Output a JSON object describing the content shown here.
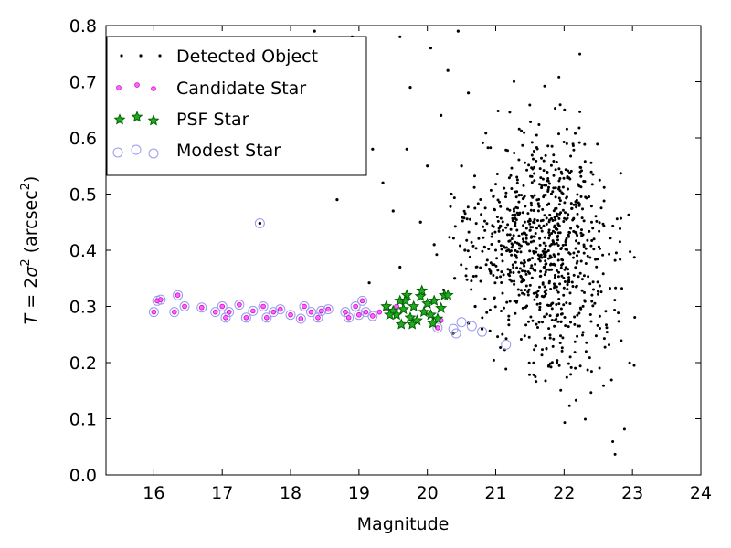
{
  "chart_data": {
    "type": "scatter",
    "xlabel": "Magnitude",
    "ylabel": {
      "prefix": "T",
      "eq": " = 2",
      "sigma": "σ",
      "sup2": "2",
      "unit_open": " (arcsec",
      "unit_sup": "2",
      "unit_close": ")"
    },
    "xlim": [
      15.3,
      24
    ],
    "ylim": [
      0.0,
      0.8
    ],
    "xticks": [
      16,
      17,
      18,
      19,
      20,
      21,
      22,
      23,
      24
    ],
    "yticks": [
      0.0,
      0.1,
      0.2,
      0.3,
      0.4,
      0.5,
      0.6,
      0.7,
      0.8
    ],
    "grid": false,
    "legend_position": "top-left",
    "legend": [
      {
        "label": "Detected Object",
        "marker": "dot",
        "color": "#000000"
      },
      {
        "label": "Candidate Star",
        "marker": "circle-small",
        "color": "#ff00ff"
      },
      {
        "label": "PSF Star",
        "marker": "star",
        "color": "#008000"
      },
      {
        "label": "Modest Star",
        "marker": "circle-large",
        "color": "#9999ee"
      }
    ],
    "series": [
      {
        "name": "Detected Object",
        "description_generator": "dense cloud of faint objects between mag 19.5 and 23.5 spanning T 0.0-0.8, plus the stellar locus near T≈0.29",
        "points": [
          [
            17.55,
            0.448
          ],
          [
            18.7,
            0.565
          ],
          [
            18.68,
            0.49
          ],
          [
            18.9,
            0.78
          ],
          [
            19.2,
            0.58
          ],
          [
            19.15,
            0.342
          ],
          [
            18.35,
            0.79
          ],
          [
            18.5,
            0.62
          ],
          [
            19.6,
            0.78
          ],
          [
            19.75,
            0.69
          ],
          [
            19.5,
            0.47
          ],
          [
            19.35,
            0.52
          ],
          [
            20.05,
            0.76
          ],
          [
            20.3,
            0.72
          ],
          [
            20.2,
            0.64
          ],
          [
            20.45,
            0.79
          ],
          [
            20.5,
            0.55
          ],
          [
            19.9,
            0.45
          ],
          [
            20.0,
            0.55
          ],
          [
            20.6,
            0.68
          ],
          [
            20.1,
            0.41
          ],
          [
            19.6,
            0.37
          ],
          [
            19.7,
            0.58
          ],
          [
            20.35,
            0.5
          ],
          [
            20.4,
            0.35
          ],
          [
            20.55,
            0.4
          ],
          [
            20.7,
            0.3
          ],
          [
            20.8,
            0.26
          ],
          [
            20.6,
            0.27
          ],
          [
            20.38,
            0.252
          ]
        ]
      },
      {
        "name": "Candidate Star",
        "points": [
          [
            16.0,
            0.29
          ],
          [
            16.05,
            0.31
          ],
          [
            16.1,
            0.312
          ],
          [
            16.3,
            0.29
          ],
          [
            16.35,
            0.32
          ],
          [
            16.45,
            0.3
          ],
          [
            16.7,
            0.298
          ],
          [
            16.9,
            0.29
          ],
          [
            17.0,
            0.3
          ],
          [
            17.05,
            0.28
          ],
          [
            17.1,
            0.29
          ],
          [
            17.25,
            0.303
          ],
          [
            17.35,
            0.28
          ],
          [
            17.45,
            0.292
          ],
          [
            17.6,
            0.3
          ],
          [
            17.65,
            0.28
          ],
          [
            17.75,
            0.29
          ],
          [
            17.85,
            0.295
          ],
          [
            18.0,
            0.285
          ],
          [
            18.15,
            0.278
          ],
          [
            18.2,
            0.3
          ],
          [
            18.3,
            0.29
          ],
          [
            18.4,
            0.28
          ],
          [
            18.45,
            0.292
          ],
          [
            18.55,
            0.295
          ],
          [
            18.8,
            0.29
          ],
          [
            18.85,
            0.28
          ],
          [
            18.95,
            0.3
          ],
          [
            19.0,
            0.285
          ],
          [
            19.05,
            0.31
          ],
          [
            19.1,
            0.29
          ],
          [
            19.2,
            0.283
          ],
          [
            19.3,
            0.29
          ],
          [
            19.4,
            0.297
          ],
          [
            19.5,
            0.29
          ],
          [
            19.55,
            0.3
          ],
          [
            20.2,
            0.275
          ],
          [
            20.15,
            0.262
          ]
        ]
      },
      {
        "name": "PSF Star",
        "points": [
          [
            19.4,
            0.3
          ],
          [
            19.5,
            0.292
          ],
          [
            19.55,
            0.285
          ],
          [
            19.6,
            0.31
          ],
          [
            19.65,
            0.295
          ],
          [
            19.7,
            0.32
          ],
          [
            19.75,
            0.28
          ],
          [
            19.8,
            0.3
          ],
          [
            19.85,
            0.275
          ],
          [
            19.9,
            0.318
          ],
          [
            19.95,
            0.29
          ],
          [
            20.0,
            0.305
          ],
          [
            20.05,
            0.285
          ],
          [
            20.1,
            0.31
          ],
          [
            20.15,
            0.278
          ],
          [
            20.2,
            0.297
          ],
          [
            20.25,
            0.32
          ],
          [
            20.3,
            0.32
          ],
          [
            19.62,
            0.268
          ],
          [
            19.78,
            0.268
          ],
          [
            19.92,
            0.328
          ],
          [
            20.08,
            0.27
          ],
          [
            19.45,
            0.285
          ],
          [
            19.68,
            0.31
          ]
        ]
      },
      {
        "name": "Modest Star",
        "points": [
          [
            16.0,
            0.29
          ],
          [
            16.05,
            0.31
          ],
          [
            16.1,
            0.312
          ],
          [
            16.3,
            0.29
          ],
          [
            16.35,
            0.32
          ],
          [
            16.45,
            0.3
          ],
          [
            16.7,
            0.298
          ],
          [
            16.9,
            0.29
          ],
          [
            17.0,
            0.3
          ],
          [
            17.05,
            0.28
          ],
          [
            17.1,
            0.29
          ],
          [
            17.25,
            0.303
          ],
          [
            17.35,
            0.28
          ],
          [
            17.45,
            0.292
          ],
          [
            17.6,
            0.3
          ],
          [
            17.65,
            0.28
          ],
          [
            17.75,
            0.29
          ],
          [
            17.85,
            0.295
          ],
          [
            18.0,
            0.285
          ],
          [
            18.15,
            0.278
          ],
          [
            18.2,
            0.3
          ],
          [
            18.3,
            0.29
          ],
          [
            18.4,
            0.28
          ],
          [
            18.45,
            0.292
          ],
          [
            18.55,
            0.295
          ],
          [
            18.8,
            0.29
          ],
          [
            18.85,
            0.28
          ],
          [
            18.95,
            0.3
          ],
          [
            19.0,
            0.285
          ],
          [
            19.05,
            0.31
          ],
          [
            19.1,
            0.29
          ],
          [
            19.2,
            0.283
          ],
          [
            17.55,
            0.448
          ],
          [
            20.38,
            0.26
          ],
          [
            20.42,
            0.252
          ],
          [
            20.65,
            0.265
          ],
          [
            20.8,
            0.255
          ],
          [
            21.15,
            0.232
          ],
          [
            20.15,
            0.262
          ],
          [
            20.5,
            0.272
          ]
        ]
      }
    ]
  }
}
